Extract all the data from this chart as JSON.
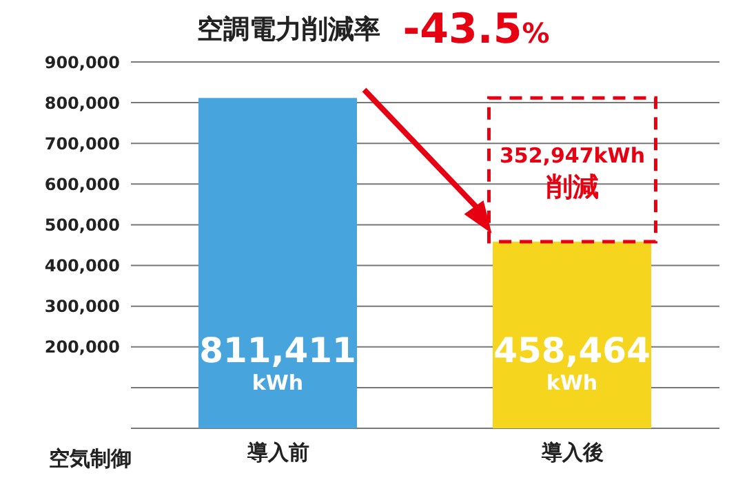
{
  "chart_data": {
    "type": "bar",
    "title": "空調電力削減率",
    "xlabel": "空気制御",
    "categories": [
      "導入前",
      "導入後"
    ],
    "values": [
      811411,
      458464
    ],
    "colors": [
      "#47a4dd",
      "#f6d51f"
    ],
    "value_labels": [
      "811,411 kWh",
      "458,464 kWh"
    ],
    "ylim": [
      0,
      900000
    ],
    "yticks": [
      {
        "value": 0,
        "label": null
      },
      {
        "value": 100000,
        "label": null
      },
      "200,000",
      "300,000",
      "400,000",
      "500,000",
      "600,000",
      "700,000",
      "800,000",
      "900,000"
    ],
    "grid": "y",
    "legend": false,
    "annotations": [
      "-43.5%",
      "352,947kWh",
      "削減"
    ]
  }
}
